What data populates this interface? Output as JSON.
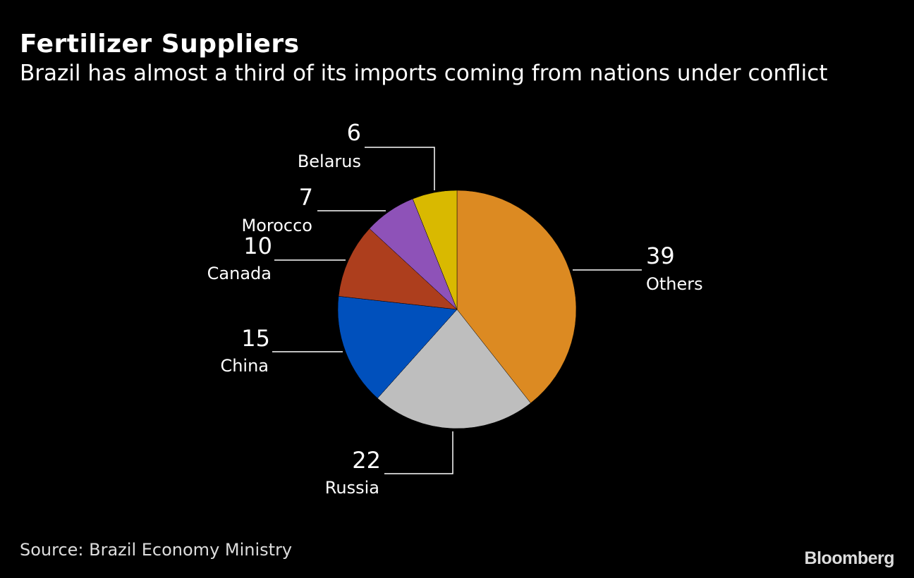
{
  "chart_data": {
    "type": "pie",
    "title": "Fertilizer Suppliers",
    "subtitle": "Brazil has almost a third of its imports coming from nations under conflict",
    "slices": [
      {
        "label": "Others",
        "value": 39,
        "color": "#DC8A22"
      },
      {
        "label": "Russia",
        "value": 22,
        "color": "#BEBEBE"
      },
      {
        "label": "China",
        "value": 15,
        "color": "#0050BC"
      },
      {
        "label": "Canada",
        "value": 10,
        "color": "#AD3E1D"
      },
      {
        "label": "Morocco",
        "value": 7,
        "color": "#8E52B8"
      },
      {
        "label": "Belarus",
        "value": 6,
        "color": "#D9B900"
      }
    ],
    "source": "Source: Brazil Economy Ministry"
  },
  "branding": {
    "logo": "Bloomberg"
  }
}
